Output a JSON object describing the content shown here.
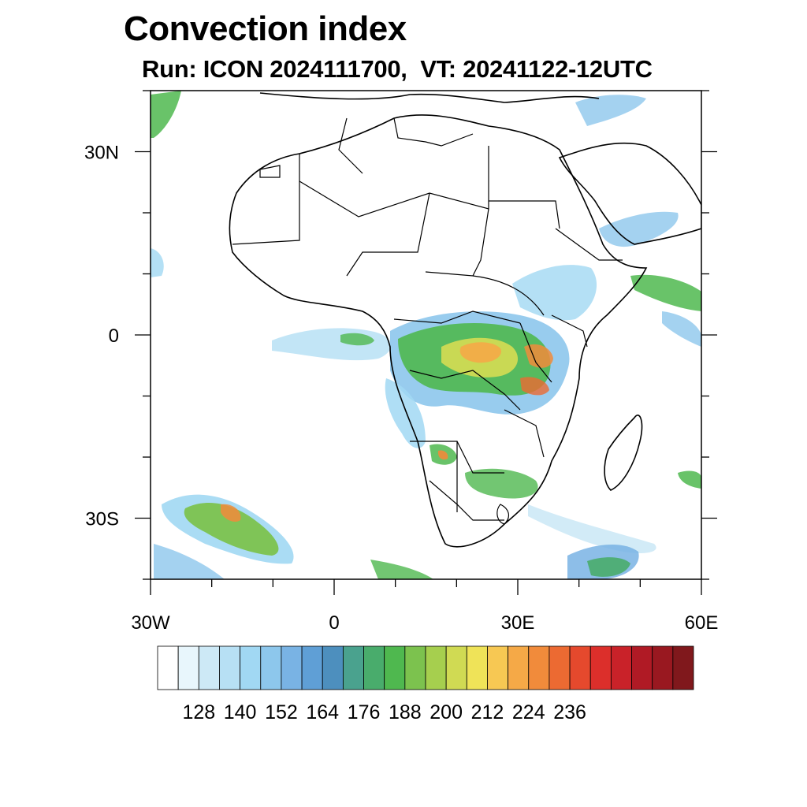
{
  "title": "Convection index",
  "subtitle": "Run: ICON 2024111700,  VT: 20241122-12UTC",
  "axes": {
    "lat_labels": [
      "30N",
      "0",
      "30S"
    ],
    "lon_labels": [
      "30W",
      "0",
      "30E",
      "60E"
    ],
    "lat_values": [
      30,
      0,
      -30
    ],
    "lon_values": [
      -30,
      0,
      30,
      60
    ],
    "lat_range": [
      -40,
      40
    ],
    "lon_range": [
      -30,
      60
    ]
  },
  "colorbar": {
    "labels": [
      "128",
      "140",
      "152",
      "164",
      "176",
      "188",
      "200",
      "212",
      "224",
      "236"
    ],
    "colors": [
      "#ffffff",
      "#e8f6fc",
      "#cde9f6",
      "#b7e0f4",
      "#a1d8f3",
      "#8dc7ec",
      "#79b3e4",
      "#5f9fd6",
      "#4d8fbe",
      "#4aa28e",
      "#49ac6c",
      "#4fb84f",
      "#7cc24e",
      "#a6cf4e",
      "#d0da53",
      "#efe358",
      "#f7c853",
      "#f5a947",
      "#f18b3b",
      "#ec6a32",
      "#e5492d",
      "#dc2f2b",
      "#c92229",
      "#b01a25",
      "#991820",
      "#80181c"
    ]
  }
}
